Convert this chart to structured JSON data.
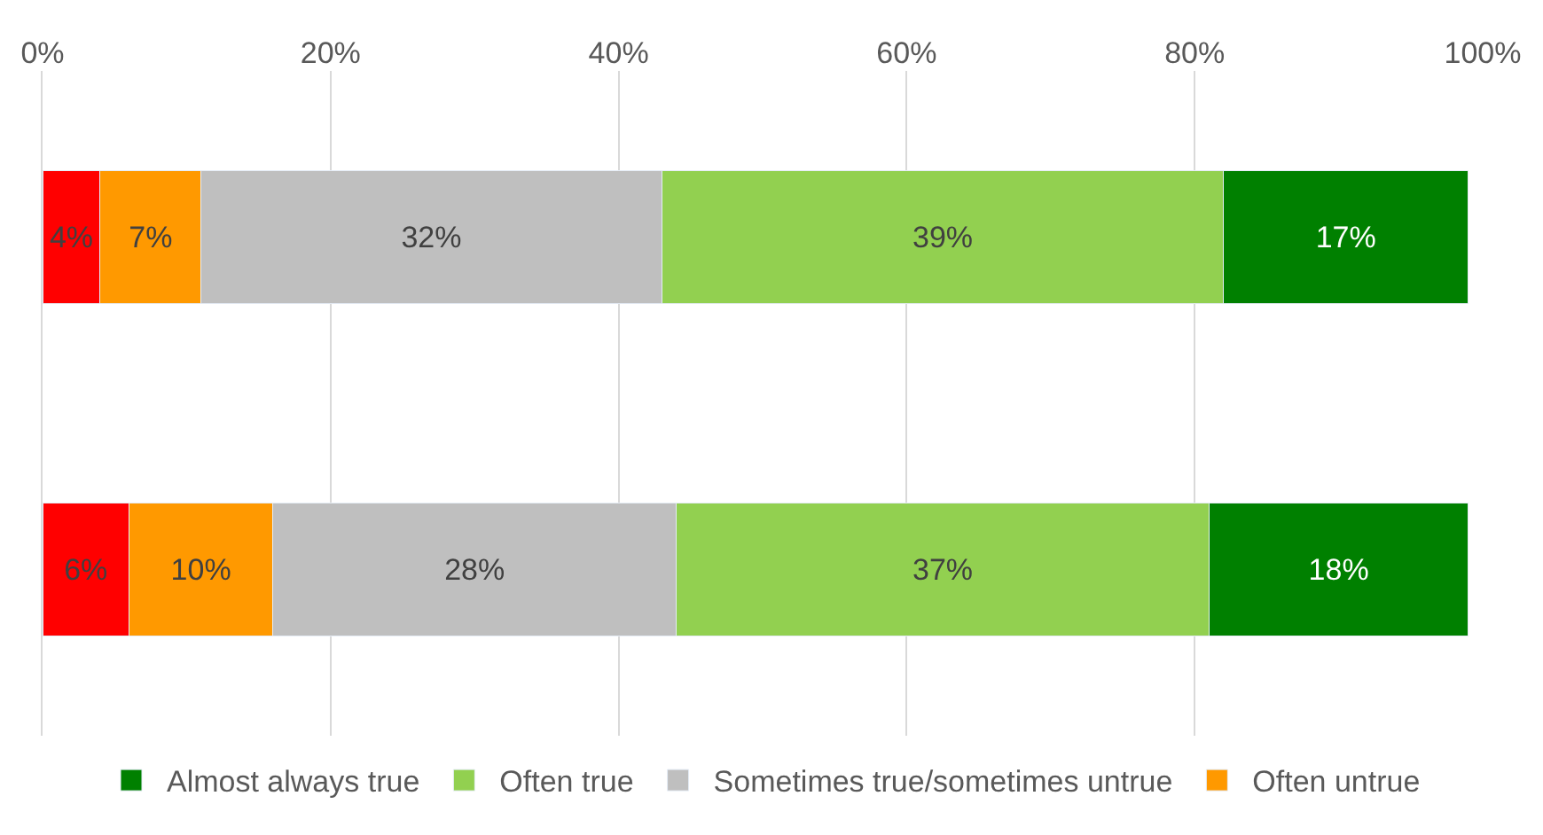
{
  "chart_data": {
    "type": "bar",
    "orientation": "horizontal",
    "stacked": true,
    "categories": [
      null,
      null
    ],
    "series": [
      {
        "color": "#ff0000",
        "values": [
          4,
          6
        ],
        "value_labels": [
          "4%",
          "6%"
        ]
      },
      {
        "name": "Often untrue",
        "color": "#ff9900",
        "values": [
          7,
          10
        ],
        "value_labels": [
          "7%",
          "10%"
        ]
      },
      {
        "name": "Sometimes true/sometimes untrue",
        "color": "#bfbfbf",
        "values": [
          32,
          28
        ],
        "value_labels": [
          "32%",
          "28%"
        ]
      },
      {
        "name": "Often true",
        "color": "#92d050",
        "values": [
          39,
          37
        ],
        "value_labels": [
          "39%",
          "37%"
        ]
      },
      {
        "name": "Almost always true",
        "color": "#008000",
        "values": [
          17,
          18
        ],
        "value_labels": [
          "17%",
          "18%"
        ]
      }
    ],
    "xlim": [
      0,
      100
    ],
    "xticks": [
      {
        "value": 0,
        "label": "0%"
      },
      {
        "value": 20,
        "label": "20%"
      },
      {
        "value": 40,
        "label": "40%"
      },
      {
        "value": 60,
        "label": "60%"
      },
      {
        "value": 80,
        "label": "80%"
      },
      {
        "value": 100,
        "label": "100%"
      }
    ],
    "grid": "x",
    "legend": "bottom"
  }
}
